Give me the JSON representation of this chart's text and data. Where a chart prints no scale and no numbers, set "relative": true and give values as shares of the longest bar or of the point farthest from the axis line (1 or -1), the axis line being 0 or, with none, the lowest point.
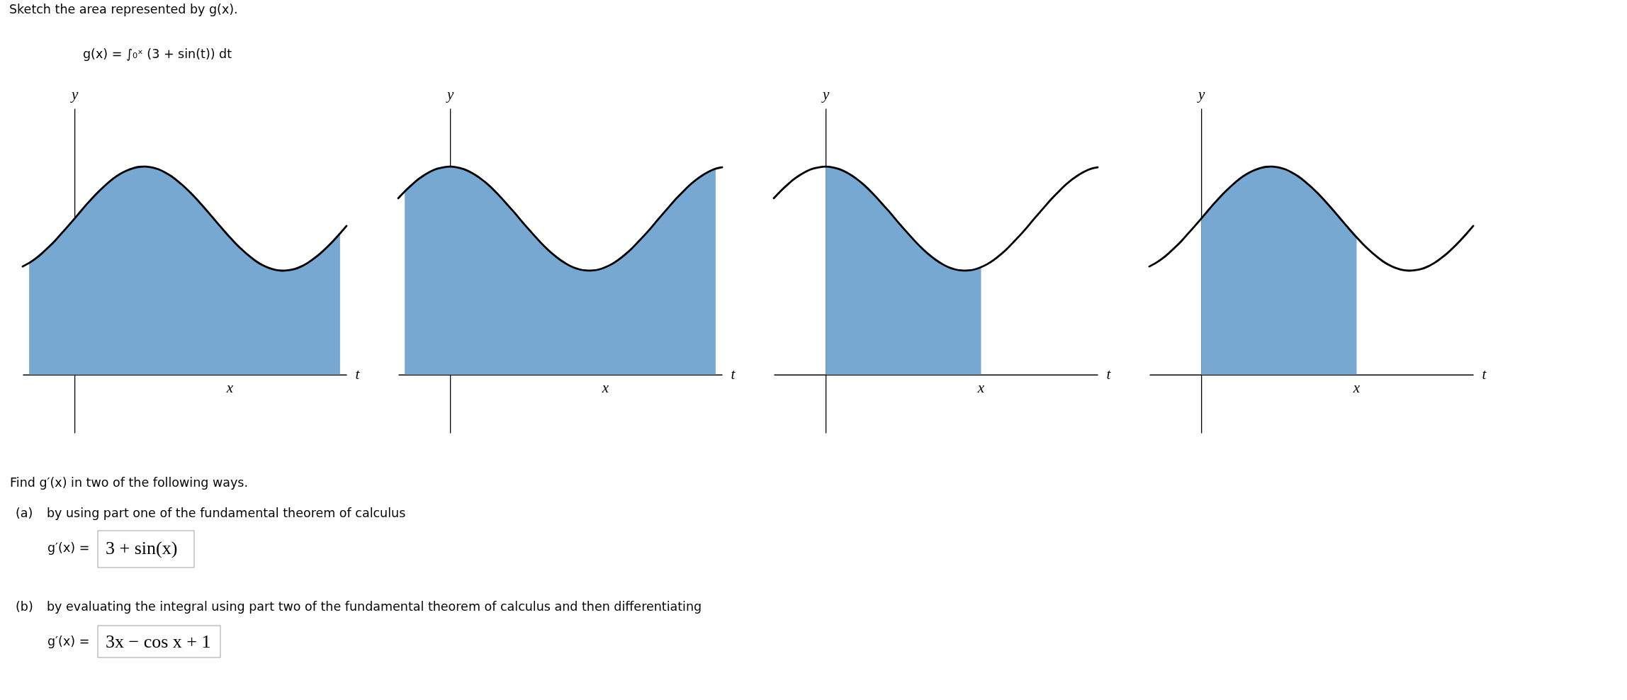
{
  "chart_data": [
    {
      "type": "other",
      "title": "Sketch the area represented by g(x).",
      "annotations": [
        "g(x) = ∫₀ˣ (3 + sin(t)) dt"
      ]
    },
    {
      "type": "line",
      "relative": true,
      "xlabel": "t",
      "ylabel": "y",
      "annotations": [
        "x"
      ],
      "categories": [
        null,
        null,
        null,
        null,
        null,
        null,
        null,
        null,
        null,
        null,
        null,
        null,
        null,
        null,
        null,
        null,
        null,
        null,
        null,
        null,
        null,
        null,
        null,
        null,
        null,
        null,
        null,
        null,
        null,
        null,
        null,
        null,
        null,
        null,
        null,
        null,
        null,
        null,
        null,
        null,
        null,
        null,
        null,
        null,
        null,
        null,
        null,
        null,
        null,
        null,
        null
      ],
      "series": [
        {
          "type": "area",
          "color": "#77a8d2",
          "values": [
            null,
            0.537,
            0.558,
            0.584,
            0.613,
            0.644,
            0.679,
            0.714,
            0.75,
            0.787,
            0.823,
            0.857,
            0.888,
            0.917,
            0.943,
            0.964,
            0.98,
            0.992,
            0.999,
            1,
            0.996,
            0.987,
            0.972,
            0.953,
            0.929,
            0.902,
            0.872,
            0.839,
            0.804,
            0.768,
            0.731,
            0.695,
            0.66,
            0.627,
            0.597,
            0.57,
            0.546,
            0.527,
            0.513,
            0.504,
            0.5,
            0.502,
            0.508,
            0.52,
            0.537,
            0.559,
            0.584,
            0.613,
            0.645,
            0.679,
            null
          ]
        },
        {
          "type": "line",
          "color": "#000000",
          "values": [
            0.52,
            0.537,
            0.558,
            0.584,
            0.613,
            0.644,
            0.679,
            0.714,
            0.75,
            0.787,
            0.823,
            0.857,
            0.888,
            0.917,
            0.943,
            0.964,
            0.98,
            0.992,
            0.999,
            1,
            0.996,
            0.987,
            0.972,
            0.953,
            0.929,
            0.902,
            0.872,
            0.839,
            0.804,
            0.768,
            0.731,
            0.695,
            0.66,
            0.627,
            0.597,
            0.57,
            0.546,
            0.527,
            0.513,
            0.504,
            0.5,
            0.502,
            0.508,
            0.52,
            0.537,
            0.559,
            0.584,
            0.613,
            0.645,
            0.679,
            0.715
          ]
        }
      ]
    },
    {
      "type": "line",
      "relative": true,
      "xlabel": "t",
      "ylabel": "y",
      "annotations": [
        "x"
      ],
      "categories": [
        null,
        null,
        null,
        null,
        null,
        null,
        null,
        null,
        null,
        null,
        null,
        null,
        null,
        null,
        null,
        null,
        null,
        null,
        null,
        null,
        null,
        null,
        null,
        null,
        null,
        null,
        null,
        null,
        null,
        null,
        null,
        null,
        null,
        null,
        null,
        null,
        null,
        null,
        null,
        null,
        null,
        null,
        null,
        null,
        null,
        null,
        null,
        null,
        null,
        null,
        null
      ],
      "series": [
        {
          "type": "area",
          "color": "#77a8d2",
          "values": [
            null,
            0.881,
            0.91,
            0.937,
            0.959,
            0.977,
            0.99,
            0.997,
            1,
            0.997,
            0.989,
            0.976,
            0.958,
            0.936,
            0.91,
            0.88,
            0.847,
            0.812,
            0.777,
            0.74,
            0.704,
            0.669,
            0.635,
            0.604,
            0.576,
            0.552,
            0.532,
            0.516,
            0.506,
            0.501,
            0.501,
            0.506,
            0.517,
            0.532,
            0.552,
            0.577,
            0.605,
            0.637,
            0.67,
            0.705,
            0.742,
            0.778,
            0.814,
            0.849,
            0.881,
            0.911,
            0.937,
            0.959,
            0.977,
            0.99,
            null
          ]
        },
        {
          "type": "line",
          "color": "#000000",
          "values": [
            0.848,
            0.881,
            0.91,
            0.937,
            0.959,
            0.977,
            0.99,
            0.997,
            1,
            0.997,
            0.989,
            0.976,
            0.958,
            0.936,
            0.91,
            0.88,
            0.847,
            0.812,
            0.777,
            0.74,
            0.704,
            0.669,
            0.635,
            0.604,
            0.576,
            0.552,
            0.532,
            0.516,
            0.506,
            0.501,
            0.501,
            0.506,
            0.517,
            0.532,
            0.552,
            0.577,
            0.605,
            0.637,
            0.67,
            0.705,
            0.742,
            0.778,
            0.814,
            0.849,
            0.881,
            0.911,
            0.937,
            0.959,
            0.977,
            0.99,
            0.997
          ]
        }
      ]
    },
    {
      "type": "line",
      "relative": true,
      "xlabel": "t",
      "ylabel": "y",
      "annotations": [
        "x"
      ],
      "categories": [
        null,
        null,
        null,
        null,
        null,
        null,
        null,
        null,
        null,
        null,
        null,
        null,
        null,
        null,
        null,
        null,
        null,
        null,
        null,
        null,
        null,
        null,
        null,
        null,
        null,
        null,
        null,
        null,
        null,
        null,
        null,
        null,
        null,
        null,
        null,
        null,
        null,
        null,
        null,
        null,
        null,
        null,
        null,
        null,
        null,
        null,
        null,
        null,
        null,
        null,
        null
      ],
      "series": [
        {
          "type": "area",
          "color": "#77a8d2",
          "values": [
            null,
            null,
            null,
            null,
            null,
            null,
            null,
            null,
            1,
            0.997,
            0.989,
            0.976,
            0.958,
            0.936,
            0.91,
            0.88,
            0.847,
            0.812,
            0.777,
            0.74,
            0.704,
            0.669,
            0.635,
            0.604,
            0.576,
            0.552,
            0.532,
            0.516,
            0.506,
            0.501,
            0.501,
            0.506,
            0.517,
            null,
            null,
            null,
            null,
            null,
            null,
            null,
            null,
            null,
            null,
            null,
            null,
            null,
            null,
            null,
            null,
            null,
            null
          ]
        },
        {
          "type": "line",
          "color": "#000000",
          "values": [
            0.848,
            0.881,
            0.91,
            0.937,
            0.959,
            0.977,
            0.99,
            0.997,
            1,
            0.997,
            0.989,
            0.976,
            0.958,
            0.936,
            0.91,
            0.88,
            0.847,
            0.812,
            0.777,
            0.74,
            0.704,
            0.669,
            0.635,
            0.604,
            0.576,
            0.552,
            0.532,
            0.516,
            0.506,
            0.501,
            0.501,
            0.506,
            0.517,
            0.532,
            0.552,
            0.577,
            0.605,
            0.637,
            0.67,
            0.705,
            0.742,
            0.778,
            0.814,
            0.849,
            0.881,
            0.911,
            0.937,
            0.959,
            0.977,
            0.99,
            0.997
          ]
        }
      ]
    },
    {
      "type": "line",
      "relative": true,
      "xlabel": "t",
      "ylabel": "y",
      "annotations": [
        "x"
      ],
      "categories": [
        null,
        null,
        null,
        null,
        null,
        null,
        null,
        null,
        null,
        null,
        null,
        null,
        null,
        null,
        null,
        null,
        null,
        null,
        null,
        null,
        null,
        null,
        null,
        null,
        null,
        null,
        null,
        null,
        null,
        null,
        null,
        null,
        null,
        null,
        null,
        null,
        null,
        null,
        null,
        null,
        null,
        null,
        null,
        null,
        null,
        null,
        null,
        null,
        null,
        null,
        null
      ],
      "series": [
        {
          "type": "area",
          "color": "#77a8d2",
          "values": [
            null,
            null,
            null,
            null,
            null,
            null,
            null,
            null,
            0.75,
            0.787,
            0.823,
            0.857,
            0.888,
            0.917,
            0.943,
            0.964,
            0.98,
            0.992,
            0.999,
            1,
            0.996,
            0.987,
            0.972,
            0.953,
            0.929,
            0.902,
            0.872,
            0.839,
            0.804,
            0.768,
            0.731,
            0.695,
            0.66,
            null,
            null,
            null,
            null,
            null,
            null,
            null,
            null,
            null,
            null,
            null,
            null,
            null,
            null,
            null,
            null,
            null,
            null
          ]
        },
        {
          "type": "line",
          "color": "#000000",
          "values": [
            0.52,
            0.537,
            0.558,
            0.584,
            0.613,
            0.644,
            0.679,
            0.714,
            0.75,
            0.787,
            0.823,
            0.857,
            0.888,
            0.917,
            0.943,
            0.964,
            0.98,
            0.992,
            0.999,
            1,
            0.996,
            0.987,
            0.972,
            0.953,
            0.929,
            0.902,
            0.872,
            0.839,
            0.804,
            0.768,
            0.731,
            0.695,
            0.66,
            0.627,
            0.597,
            0.57,
            0.546,
            0.527,
            0.513,
            0.504,
            0.5,
            0.502,
            0.508,
            0.52,
            0.537,
            0.559,
            0.584,
            0.613,
            0.645,
            0.679,
            0.715
          ]
        }
      ]
    },
    {
      "type": "other",
      "annotations": [
        "Find g′(x) in two of the following ways.",
        "(a)",
        "by using part one of the fundamental theorem of calculus",
        "g′(x) =",
        "3 + sin(x)",
        "(b)",
        "by evaluating the integral using part two of the fundamental theorem of calculus and then differentiating",
        "g′(x) =",
        "3x − cos x + 1"
      ]
    }
  ]
}
